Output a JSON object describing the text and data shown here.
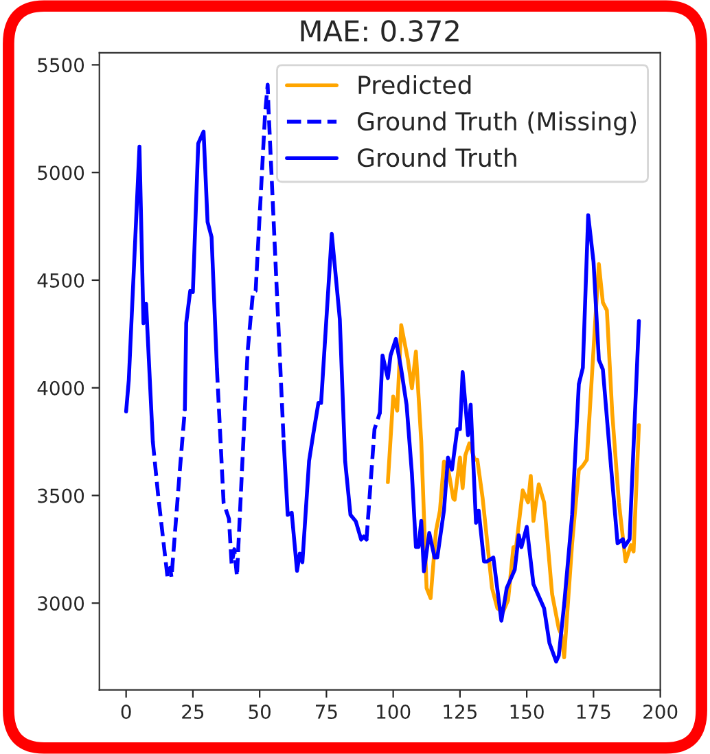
{
  "chart_data": {
    "type": "line",
    "title": "MAE: 0.372",
    "xlim": [
      -10,
      200
    ],
    "xticks": [
      0,
      25,
      50,
      75,
      100,
      125,
      150,
      175,
      200
    ],
    "ylim": [
      2597,
      5556
    ],
    "yticks": [
      3000,
      3500,
      4000,
      4500,
      5000,
      5500
    ],
    "legend": "top right",
    "grid": false,
    "series": [
      {
        "name": "Predicted",
        "color": "#ffa500",
        "line_style": "solid",
        "x": [
          98,
          100,
          101.5,
          103,
          105.5,
          107,
          108.5,
          110.5,
          112.5,
          114,
          116,
          117.5,
          119,
          120.5,
          122.5,
          123,
          125,
          126,
          127,
          128.5,
          130.5,
          131.5,
          133.5,
          137,
          139,
          141,
          143,
          145,
          146,
          148.5,
          150.5,
          151.5,
          152.5,
          154.5,
          156.5,
          159.5,
          162,
          163,
          164,
          167,
          169.5,
          171,
          172.5,
          175.5,
          177,
          178.5,
          180,
          182,
          184.5,
          187,
          189,
          190,
          192
        ],
        "values": [
          3562,
          3960,
          3894,
          4291,
          4130,
          3998,
          4168,
          3751,
          3070,
          3023,
          3335,
          3430,
          3657,
          3628,
          3486,
          3480,
          3676,
          3534,
          3686,
          3742,
          3666,
          3666,
          3486,
          3070,
          2976,
          2957,
          3013,
          3260,
          3260,
          3524,
          3468,
          3591,
          3382,
          3552,
          3468,
          3042,
          2881,
          2853,
          2748,
          3278,
          3619,
          3638,
          3666,
          4282,
          4575,
          4396,
          4360,
          3884,
          3468,
          3193,
          3269,
          3240,
          3827
        ]
      },
      {
        "name": "Ground Truth (Missing)",
        "color": "#0000ff",
        "line_style": "dashed",
        "x": [
          10,
          12,
          15.5,
          16.5,
          17,
          20,
          22,
          28,
          34,
          36.5,
          38.5,
          39.5,
          40.5,
          41.5,
          45.5,
          47.5,
          48.5,
          52,
          53,
          53.3,
          59,
          75,
          90,
          93,
          95
        ],
        "values": [
          3750,
          3500,
          3120,
          3165,
          3120,
          3600,
          3900,
          null,
          4090,
          3466,
          3392,
          3182,
          3250,
          3125,
          4170,
          4443,
          4450,
          5266,
          5408,
          5300,
          3750,
          null,
          3295,
          3808,
          3884
        ]
      },
      {
        "name": "Ground Truth",
        "color": "#0000ff",
        "line_style": "solid",
        "x": [
          0,
          1,
          5,
          6.5,
          7.5,
          10,
          11,
          22,
          22.5,
          24,
          25,
          27,
          29,
          30.5,
          32,
          34,
          35,
          59,
          60.5,
          62,
          64,
          65,
          66,
          68.5,
          70,
          72,
          73,
          77,
          80,
          82,
          84,
          86,
          88,
          89,
          90,
          91,
          95,
          96,
          98,
          99,
          101,
          103,
          105,
          107,
          108.5,
          109.5,
          110.5,
          111.5,
          113.5,
          115.5,
          116.5,
          119,
          120.5,
          122,
          124,
          125,
          126,
          128,
          129,
          131,
          132,
          134,
          135,
          137.5,
          140.5,
          142.5,
          145.5,
          147,
          148,
          150,
          152.5,
          156.5,
          158.5,
          161,
          162,
          164,
          167,
          169.5,
          171,
          173,
          175,
          177,
          178.5,
          181,
          184,
          186,
          186.5,
          188.5,
          192
        ],
        "values": [
          3890,
          4035,
          5120,
          4300,
          4390,
          3750,
          null,
          3900,
          4300,
          4450,
          4445,
          5135,
          5190,
          4770,
          4700,
          4090,
          null,
          3750,
          3410,
          3420,
          3150,
          3230,
          3190,
          3660,
          3780,
          3930,
          3930,
          4715,
          4320,
          3660,
          3410,
          3380,
          3295,
          3310,
          3295,
          null,
          3884,
          4150,
          4045,
          4150,
          4227,
          4085,
          3922,
          3602,
          3261,
          3261,
          3382,
          3148,
          3326,
          3212,
          3212,
          3430,
          3676,
          3620,
          3808,
          3808,
          4073,
          3780,
          3922,
          3373,
          3430,
          3193,
          3193,
          3212,
          2918,
          3070,
          3155,
          3316,
          3260,
          3354,
          3088,
          2976,
          2814,
          2729,
          2757,
          2994,
          3411,
          4017,
          4093,
          4802,
          4585,
          4130,
          4085,
          3713,
          3278,
          3297,
          3261,
          3297,
          4310
        ]
      }
    ]
  }
}
